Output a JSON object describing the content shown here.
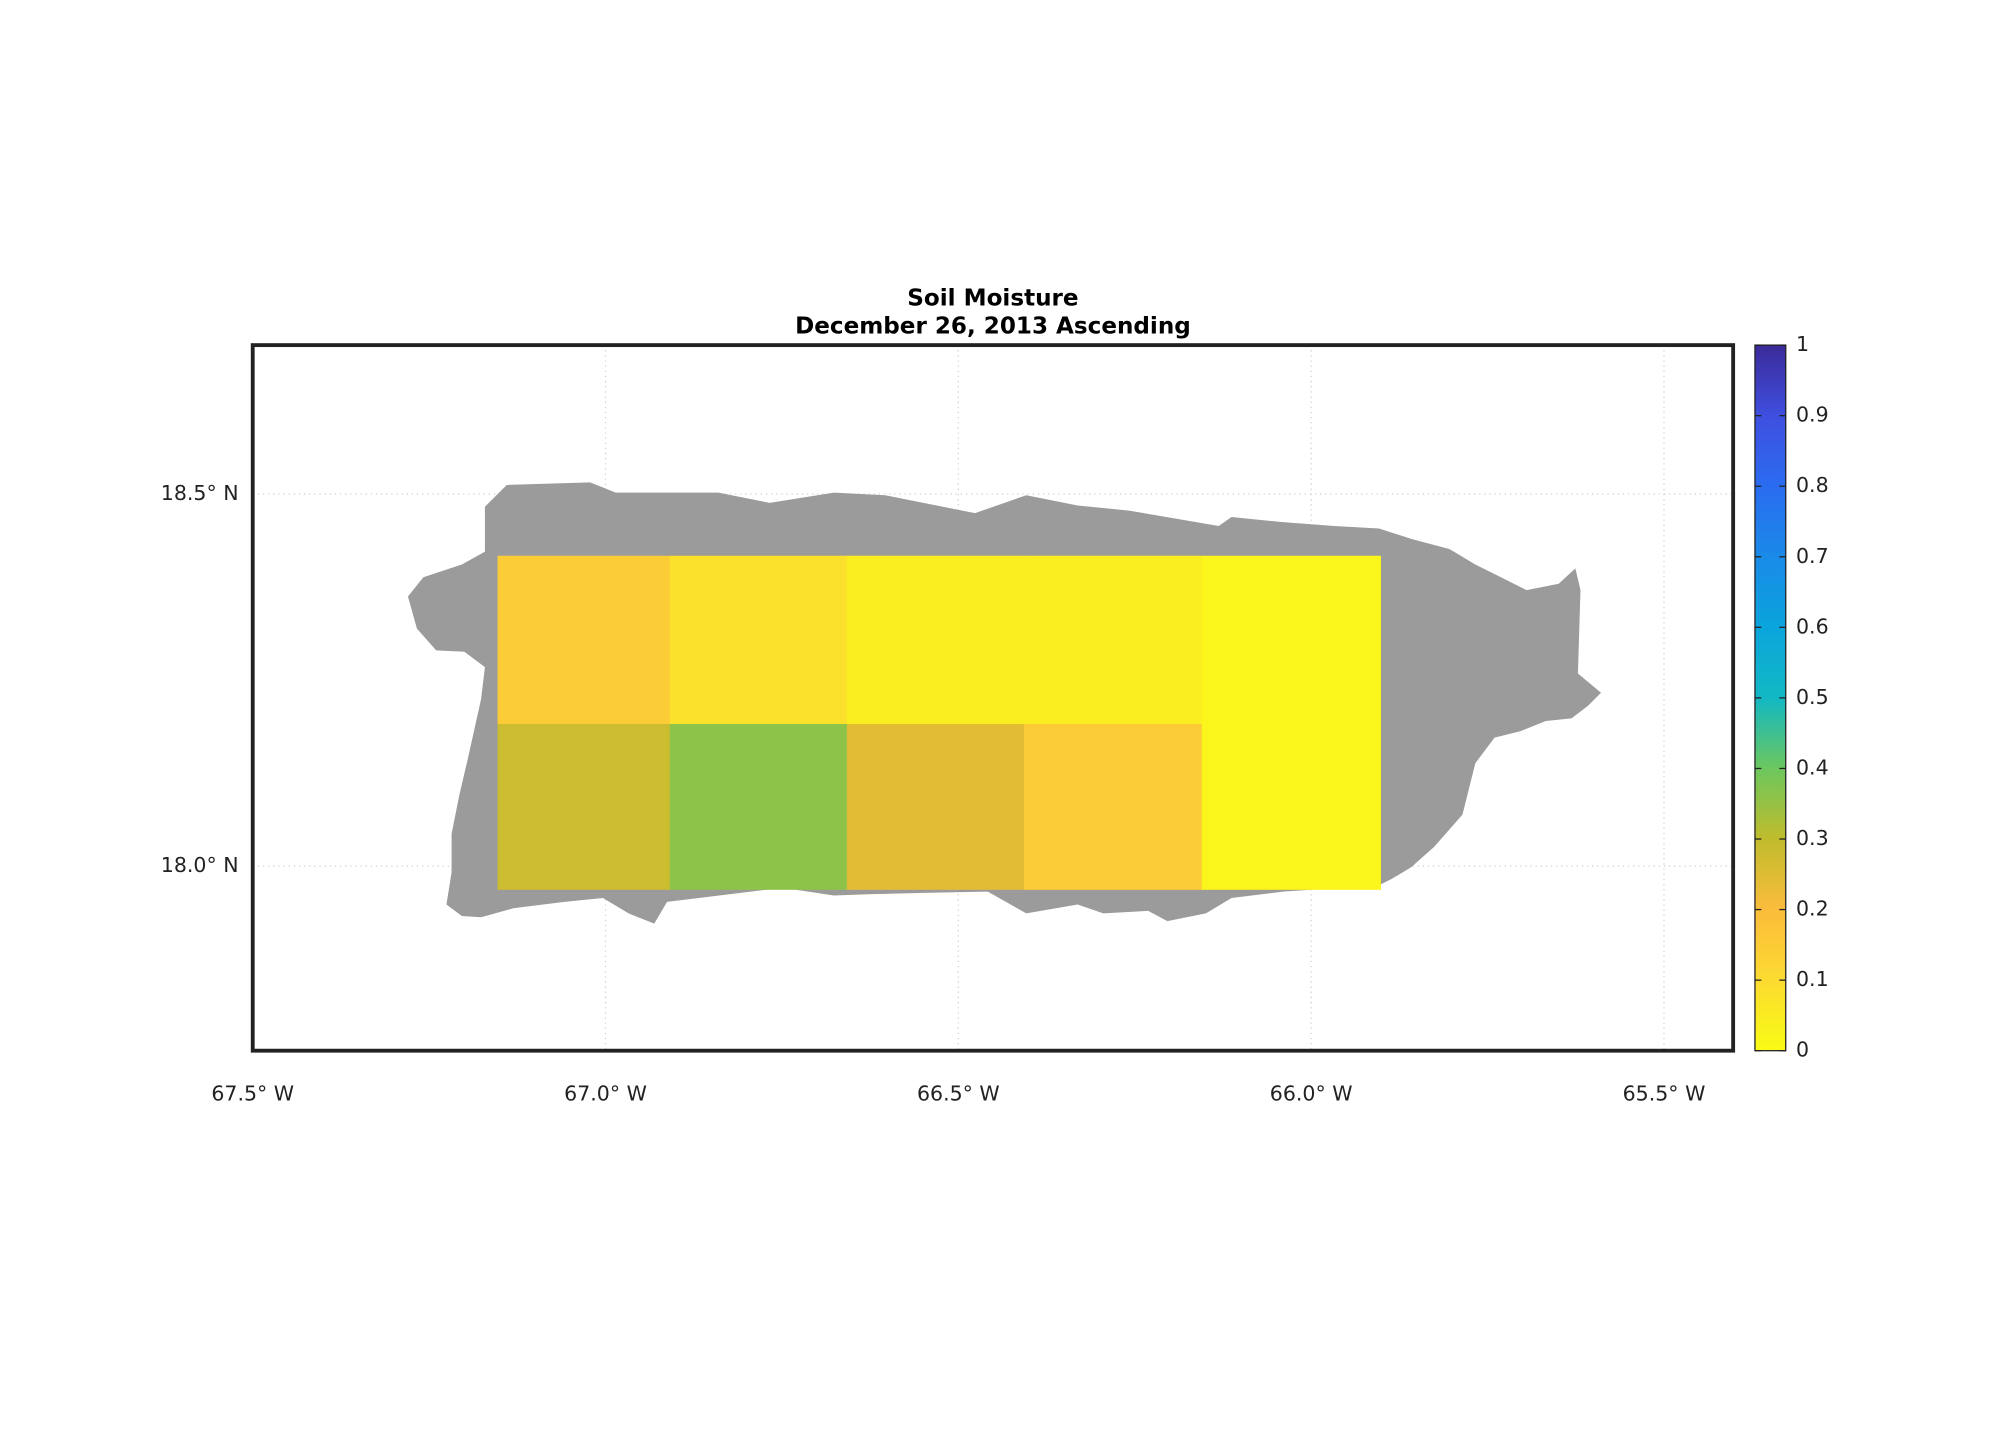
{
  "chart_data": {
    "type": "heatmap",
    "title": "Soil Moisture",
    "subtitle": "December 26, 2013 Ascending",
    "xlim": [
      -67.5,
      -65.402
    ],
    "ylim": [
      17.752,
      18.7
    ],
    "xticks": [
      {
        "value": -67.5,
        "label": "67.5° W"
      },
      {
        "value": -67.0,
        "label": "67.0° W"
      },
      {
        "value": -66.5,
        "label": "66.5° W"
      },
      {
        "value": -66.0,
        "label": "66.0° W"
      },
      {
        "value": -65.5,
        "label": "65.5° W"
      }
    ],
    "yticks": [
      {
        "value": 18.0,
        "label": "18.0° N"
      },
      {
        "value": 18.5,
        "label": "18.5° N"
      }
    ],
    "grid": true,
    "x_edges": [
      -67.153,
      -66.909,
      -66.658,
      -66.407,
      -66.155,
      -65.902
    ],
    "y_edges": [
      18.417,
      18.191,
      17.969
    ],
    "values": [
      [
        0.15,
        0.08,
        0.04,
        0.04,
        0.02
      ],
      [
        0.28,
        0.36,
        0.24,
        0.15,
        0.02
      ]
    ],
    "land_color": "#9b9b9b",
    "clim": [
      0,
      1
    ],
    "cticks": [
      0,
      0.1,
      0.2,
      0.3,
      0.4,
      0.5,
      0.6,
      0.7,
      0.8,
      0.9,
      1
    ],
    "colormap": [
      "#f9fb15",
      "#fcdb30",
      "#fbbc3c",
      "#c0bc2c",
      "#6cc75e",
      "#12b8c4",
      "#0aa5dc",
      "#1a8ae8",
      "#2a6cf0",
      "#3f4fe0",
      "#3b2a98"
    ]
  }
}
